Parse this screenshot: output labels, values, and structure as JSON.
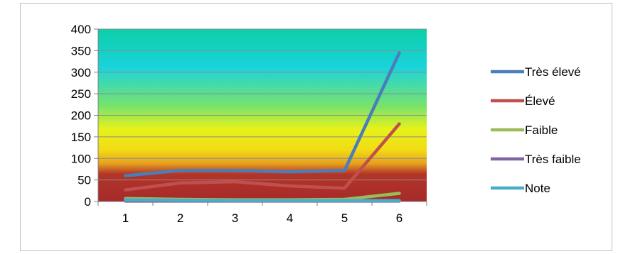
{
  "chart_data": {
    "type": "line",
    "title": "",
    "xlabel": "",
    "ylabel": "",
    "categories": [
      "1",
      "2",
      "3",
      "4",
      "5",
      "6"
    ],
    "ylim": [
      0,
      400
    ],
    "yticks": [
      0,
      50,
      100,
      150,
      200,
      250,
      300,
      350,
      400
    ],
    "grid": true,
    "legend_position": "right",
    "background": "gradient: green-teal top, cyan, yellow, orange, dark red bottom",
    "series": [
      {
        "name": "Très élevé",
        "color": "#4a7ebb",
        "values": [
          60,
          72,
          72,
          69,
          72,
          345
        ]
      },
      {
        "name": "Élevé",
        "color": "#c0504d",
        "values": [
          27,
          43,
          46,
          36,
          31,
          180
        ]
      },
      {
        "name": "Faible",
        "color": "#9bbb59",
        "values": [
          7,
          5,
          4,
          4,
          5,
          19
        ]
      },
      {
        "name": "Très faible",
        "color": "#8064a2",
        "values": [
          1,
          1,
          1,
          1,
          1,
          1
        ]
      },
      {
        "name": "Note",
        "color": "#4bacc6",
        "values": [
          4,
          3,
          2,
          2,
          2,
          2
        ]
      }
    ]
  }
}
